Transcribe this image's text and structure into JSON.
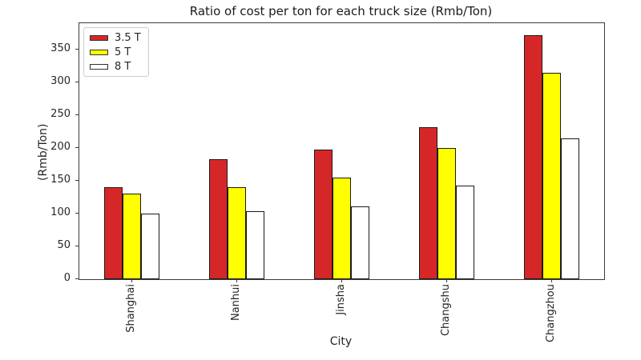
{
  "chart_data": {
    "type": "bar",
    "title": "Ratio of cost per ton for each truck size (Rmb/Ton)",
    "xlabel": "City",
    "ylabel": "(Rmb/Ton)",
    "categories": [
      "Shanghai",
      "Nanhui",
      "Jinsha",
      "Changshu",
      "Changzhou"
    ],
    "series": [
      {
        "name": "3.5 T",
        "color": "#d62728",
        "values": [
          140,
          183,
          197,
          231,
          372
        ]
      },
      {
        "name": "5 T",
        "color": "#ffff00",
        "values": [
          130,
          140,
          155,
          200,
          314
        ]
      },
      {
        "name": "8 T",
        "color": "#ffffff",
        "values": [
          100,
          103,
          111,
          143,
          215
        ]
      }
    ],
    "ylim": [
      0,
      390
    ],
    "yticks": [
      0,
      50,
      100,
      150,
      200,
      250,
      300,
      350
    ],
    "legend_position": "upper left",
    "grid": false,
    "bar_edge_color": "#1a1a1a"
  }
}
